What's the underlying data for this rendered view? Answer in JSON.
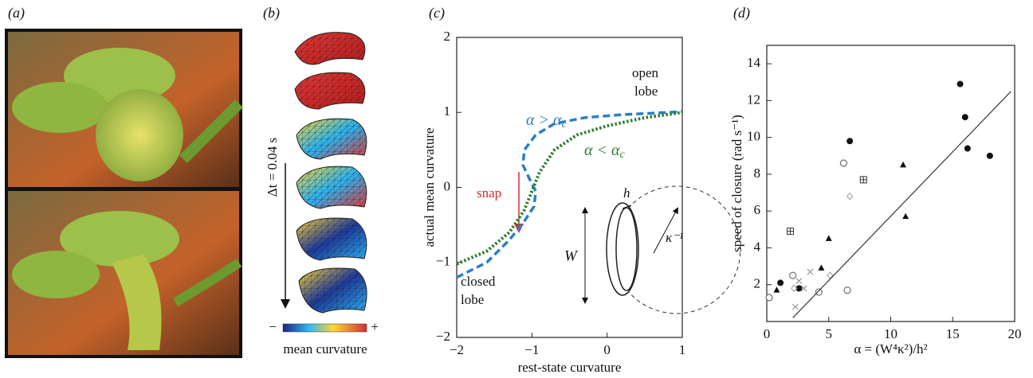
{
  "panel_labels": [
    "(a)",
    "(b)",
    "(c)",
    "(d)"
  ],
  "panel_b": {
    "time_label": "Δt = 0.04 s",
    "scale_min": "−",
    "scale_max": "+",
    "scale_label": "mean curvature"
  },
  "chart_data": [
    {
      "type": "line",
      "xlabel": "rest-state curvature",
      "ylabel": "actual mean curvature",
      "xlim": [
        -2,
        1
      ],
      "ylim": [
        -2,
        2
      ],
      "xticks": [
        {
          "value": -2,
          "label": "−2"
        },
        {
          "value": -1,
          "label": "−1"
        },
        0,
        1
      ],
      "yticks": [
        {
          "value": -2,
          "label": "−2"
        },
        {
          "value": -1,
          "label": "−1"
        },
        0,
        1,
        2
      ],
      "series": [
        {
          "name": "α > α",
          "name_subscript": "c",
          "color": "#2b7fc4",
          "style": "dashed",
          "x": [
            -2,
            -1.6,
            -1.3,
            -1.1,
            -0.97,
            -0.95,
            -1.05,
            -1.12,
            -1.1,
            -0.95,
            -0.7,
            -0.3,
            0.2,
            0.6,
            1
          ],
          "values": [
            -1.2,
            -1.0,
            -0.7,
            -0.45,
            -0.25,
            -0.05,
            0.15,
            0.3,
            0.5,
            0.7,
            0.85,
            0.93,
            0.97,
            0.99,
            1.01
          ]
        },
        {
          "name": "α < α",
          "name_subscript": "c",
          "color": "#2e7d32",
          "style": "dotted",
          "x": [
            -2,
            -1.6,
            -1.3,
            -1.1,
            -1,
            -0.9,
            -0.7,
            -0.4,
            0,
            0.5,
            1
          ],
          "values": [
            -1.02,
            -0.85,
            -0.6,
            -0.3,
            -0.05,
            0.2,
            0.5,
            0.7,
            0.82,
            0.93,
            1.0
          ]
        }
      ],
      "annotations": {
        "open": "open",
        "open_lobe": "lobe",
        "closed": "closed",
        "closed_lobe": "lobe",
        "snap": "snap",
        "width": "W",
        "thickness": "h",
        "radius": "κ⁻¹"
      }
    },
    {
      "type": "scatter",
      "xlabel": "α = (W⁴κ²)/h²",
      "ylabel": "speed of closure (rad s⁻¹)",
      "xlim": [
        0,
        20
      ],
      "ylim": [
        0,
        15
      ],
      "xticks": [
        0,
        5,
        10,
        15,
        20
      ],
      "yticks": [
        2,
        4,
        6,
        8,
        10,
        12,
        14
      ],
      "series": [
        {
          "marker": "filled-circle",
          "color": "#111111",
          "x": [
            1.1,
            2.6,
            6.7,
            15.6,
            16.0,
            16.2,
            18.0
          ],
          "values": [
            2.1,
            1.8,
            9.8,
            12.9,
            11.1,
            9.4,
            9.0
          ]
        },
        {
          "marker": "open-circle",
          "color": "#777777",
          "x": [
            0.2,
            2.1,
            4.2,
            6.2,
            6.5
          ],
          "values": [
            1.3,
            2.5,
            1.6,
            8.6,
            1.7
          ]
        },
        {
          "marker": "filled-triangle",
          "color": "#111111",
          "x": [
            0.8,
            4.4,
            5.0,
            11.0,
            11.2
          ],
          "values": [
            1.7,
            2.9,
            4.5,
            8.5,
            5.7
          ]
        },
        {
          "marker": "square-plus",
          "color": "#333333",
          "x": [
            1.9,
            7.8
          ],
          "values": [
            4.9,
            7.7
          ]
        },
        {
          "marker": "open-diamond",
          "color": "#999999",
          "x": [
            2.2,
            5.1,
            6.7
          ],
          "values": [
            1.8,
            2.5,
            6.8
          ]
        },
        {
          "marker": "cross",
          "color": "#999999",
          "x": [
            2.6,
            3.0,
            2.3,
            3.5
          ],
          "values": [
            2.2,
            1.8,
            0.8,
            2.7
          ]
        },
        {
          "marker": "line",
          "color": "#444444",
          "x": [
            2.1,
            19.7
          ],
          "values": [
            0.2,
            12.5
          ]
        }
      ]
    }
  ]
}
